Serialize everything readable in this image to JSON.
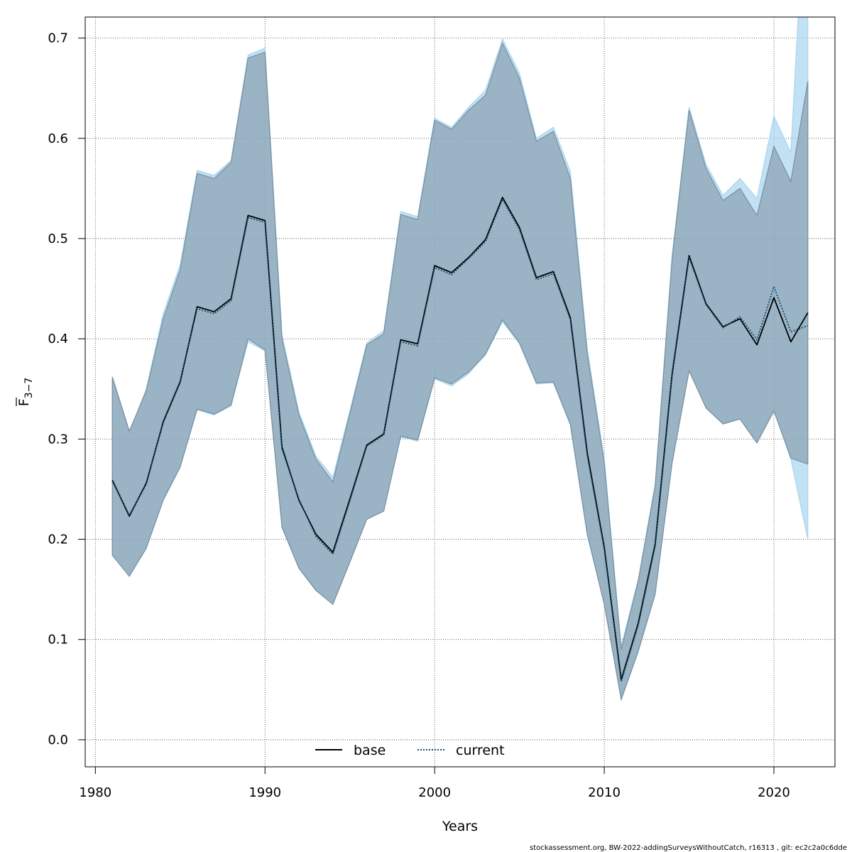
{
  "chart_data": {
    "type": "line",
    "xlabel": "Years",
    "ylabel_main": "F",
    "ylabel_sub": "3−7",
    "xlim": [
      1979.4,
      2023.6
    ],
    "ylim": [
      -0.027,
      0.721
    ],
    "xticks": [
      1980,
      1990,
      2000,
      2010,
      2020
    ],
    "yticks": [
      0.0,
      0.1,
      0.2,
      0.3,
      0.4,
      0.5,
      0.6,
      0.7
    ],
    "ytick_labels": [
      "0.0",
      "0.1",
      "0.2",
      "0.3",
      "0.4",
      "0.5",
      "0.6",
      "0.7"
    ],
    "grid": true,
    "legend_position": "bottom-center",
    "x": [
      1981,
      1982,
      1983,
      1984,
      1985,
      1986,
      1987,
      1988,
      1989,
      1990,
      1991,
      1992,
      1993,
      1994,
      1995,
      1996,
      1997,
      1998,
      1999,
      2000,
      2001,
      2002,
      2003,
      2004,
      2005,
      2006,
      2007,
      2008,
      2009,
      2010,
      2011,
      2012,
      2013,
      2014,
      2015,
      2016,
      2017,
      2018,
      2019,
      2020,
      2021,
      2022
    ],
    "series": [
      {
        "name": "base",
        "color": "#000000",
        "style": "solid",
        "band_color": "#7a8f9e",
        "values": [
          0.259,
          0.223,
          0.256,
          0.317,
          0.357,
          0.432,
          0.427,
          0.44,
          0.523,
          0.518,
          0.292,
          0.239,
          0.205,
          0.187,
          0.24,
          0.294,
          0.305,
          0.399,
          0.395,
          0.473,
          0.466,
          0.481,
          0.499,
          0.541,
          0.511,
          0.461,
          0.467,
          0.421,
          0.286,
          0.192,
          0.06,
          0.116,
          0.195,
          0.365,
          0.483,
          0.435,
          0.412,
          0.42,
          0.394,
          0.441,
          0.397,
          0.426
        ],
        "lower": [
          0.184,
          0.163,
          0.191,
          0.239,
          0.272,
          0.33,
          0.325,
          0.334,
          0.4,
          0.389,
          0.212,
          0.171,
          0.149,
          0.135,
          0.177,
          0.22,
          0.228,
          0.303,
          0.299,
          0.361,
          0.355,
          0.367,
          0.385,
          0.419,
          0.396,
          0.356,
          0.357,
          0.315,
          0.205,
          0.135,
          0.04,
          0.088,
          0.145,
          0.276,
          0.368,
          0.331,
          0.315,
          0.32,
          0.296,
          0.328,
          0.281,
          0.275
        ],
        "upper": [
          0.362,
          0.308,
          0.348,
          0.42,
          0.469,
          0.565,
          0.56,
          0.576,
          0.68,
          0.686,
          0.4,
          0.324,
          0.28,
          0.257,
          0.325,
          0.394,
          0.405,
          0.524,
          0.519,
          0.618,
          0.609,
          0.628,
          0.643,
          0.695,
          0.66,
          0.597,
          0.607,
          0.56,
          0.385,
          0.276,
          0.09,
          0.158,
          0.253,
          0.48,
          0.628,
          0.57,
          0.538,
          0.55,
          0.523,
          0.592,
          0.557,
          0.657
        ]
      },
      {
        "name": "current",
        "color": "#1a4a6a",
        "style": "dotted",
        "band_color": "#a8d4ef",
        "values": [
          0.258,
          0.224,
          0.255,
          0.318,
          0.358,
          0.43,
          0.425,
          0.438,
          0.521,
          0.516,
          0.29,
          0.24,
          0.203,
          0.185,
          0.238,
          0.293,
          0.304,
          0.397,
          0.393,
          0.471,
          0.464,
          0.48,
          0.497,
          0.539,
          0.509,
          0.459,
          0.465,
          0.419,
          0.283,
          0.19,
          0.058,
          0.114,
          0.193,
          0.363,
          0.481,
          0.434,
          0.411,
          0.422,
          0.399,
          0.452,
          0.407,
          0.413
        ],
        "lower": [
          0.186,
          0.165,
          0.192,
          0.241,
          0.273,
          0.329,
          0.324,
          0.333,
          0.397,
          0.388,
          0.214,
          0.172,
          0.15,
          0.137,
          0.178,
          0.221,
          0.229,
          0.302,
          0.298,
          0.36,
          0.353,
          0.365,
          0.384,
          0.417,
          0.395,
          0.355,
          0.356,
          0.314,
          0.204,
          0.136,
          0.042,
          0.09,
          0.146,
          0.277,
          0.369,
          0.331,
          0.316,
          0.32,
          0.298,
          0.33,
          0.28,
          0.2
        ],
        "upper": [
          0.36,
          0.306,
          0.35,
          0.425,
          0.474,
          0.568,
          0.563,
          0.578,
          0.683,
          0.69,
          0.404,
          0.327,
          0.283,
          0.262,
          0.328,
          0.396,
          0.408,
          0.527,
          0.522,
          0.62,
          0.611,
          0.631,
          0.648,
          0.699,
          0.665,
          0.6,
          0.611,
          0.567,
          0.39,
          0.28,
          0.093,
          0.16,
          0.255,
          0.483,
          0.631,
          0.574,
          0.543,
          0.56,
          0.54,
          0.622,
          0.586,
          0.9
        ]
      }
    ],
    "footer": "stockassessment.org, BW-2022-addingSurveysWithoutCatch, r16313 , git: ec2c2a0c6dde"
  }
}
